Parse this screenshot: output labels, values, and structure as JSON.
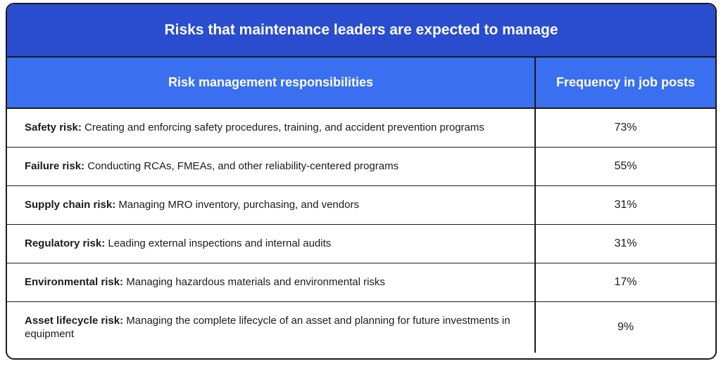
{
  "title": "Risks that maintenance leaders are expected to manage",
  "columns": {
    "responsibilities": "Risk management responsibilities",
    "frequency": "Frequency in job posts"
  },
  "rows": [
    {
      "name": "Safety risk:",
      "description": "Creating and enforcing safety procedures, training, and accident prevention programs",
      "frequency": "73%"
    },
    {
      "name": "Failure risk:",
      "description": "Conducting RCAs, FMEAs, and other reliability-centered programs",
      "frequency": "55%"
    },
    {
      "name": "Supply chain risk:",
      "description": "Managing MRO inventory, purchasing, and vendors",
      "frequency": "31%"
    },
    {
      "name": "Regulatory risk:",
      "description": "Leading external inspections and internal audits",
      "frequency": "31%"
    },
    {
      "name": "Environmental risk:",
      "description": "Managing hazardous materials and environmental risks",
      "frequency": "17%"
    },
    {
      "name": "Asset lifecycle risk:",
      "description": "Managing the complete lifecycle of an asset and planning for future investments in equipment",
      "frequency": "9%"
    }
  ],
  "colors": {
    "title_bg": "#2a4ccf",
    "header_bg": "#3a6ff0",
    "border": "#1b1b1b"
  }
}
